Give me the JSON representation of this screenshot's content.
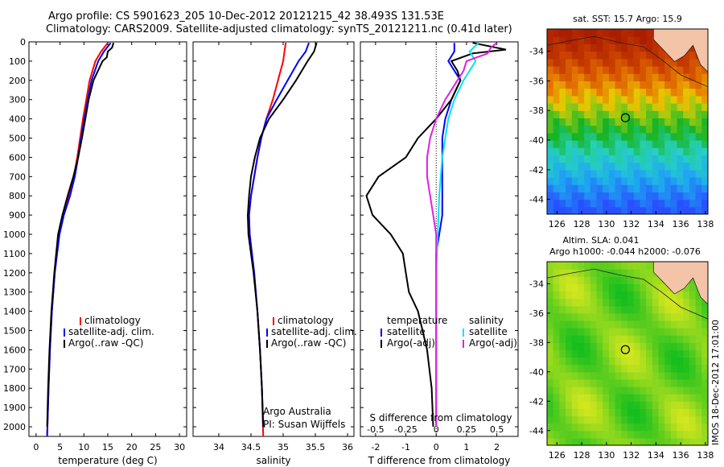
{
  "title": {
    "line1": "Argo profile: CS 5901623_205 10-Dec-2012 20121215_42 38.493S 131.53E",
    "line2": "Climatology: CARS2009. Satellite-adjusted climatology: synTS_20121211.nc (0.41d later)"
  },
  "colors": {
    "climatology": "#ff0000",
    "satellite": "#0000ff",
    "argo": "#000000",
    "sal_satellite": "#00e5ee",
    "sal_argo": "#e020e0"
  },
  "chart_data": [
    {
      "type": "line",
      "xlabel": "temperature (deg C)",
      "xticks": [
        0,
        5,
        10,
        15,
        20,
        25,
        30
      ],
      "xlim": [
        -1.5,
        31.5
      ],
      "ylim": [
        0,
        2050
      ],
      "yticks": [
        0,
        100,
        200,
        300,
        400,
        500,
        600,
        700,
        800,
        900,
        1000,
        1100,
        1200,
        1300,
        1400,
        1500,
        1600,
        1700,
        1800,
        1900,
        2000
      ],
      "legend": [
        "climatology",
        "satellite-adj. clim.",
        "Argo(..raw -QC)"
      ],
      "series": [
        {
          "name": "climatology",
          "y": [
            5,
            50,
            100,
            200,
            300,
            400,
            500,
            600,
            700,
            800,
            900,
            1000,
            1200,
            1400,
            1600,
            1800,
            2050
          ],
          "x": [
            15.0,
            13.6,
            12.4,
            11.2,
            10.5,
            9.8,
            9.2,
            8.6,
            7.9,
            6.9,
            5.6,
            4.8,
            3.9,
            3.3,
            2.9,
            2.6,
            2.3
          ]
        },
        {
          "name": "satellite-adj. clim.",
          "y": [
            5,
            50,
            100,
            200,
            300,
            400,
            500,
            600,
            700,
            800,
            900,
            1000,
            1200,
            1400,
            1600,
            1800,
            2050
          ],
          "x": [
            15.6,
            14.2,
            13.0,
            11.6,
            10.8,
            10.1,
            9.4,
            8.8,
            8.1,
            7.1,
            5.8,
            4.9,
            3.9,
            3.3,
            2.9,
            2.6,
            2.3
          ]
        },
        {
          "name": "Argo(..raw -QC)",
          "y": [
            5,
            30,
            50,
            80,
            100,
            200,
            300,
            400,
            500,
            600,
            700,
            800,
            900,
            1000,
            1200,
            1400,
            1600,
            1800,
            2000
          ],
          "x": [
            16.2,
            15.9,
            15.0,
            14.8,
            13.9,
            12.0,
            11.0,
            10.3,
            9.6,
            8.8,
            7.8,
            6.6,
            5.5,
            4.6,
            3.8,
            3.2,
            2.8,
            2.5,
            2.3
          ]
        }
      ]
    },
    {
      "type": "line",
      "xlabel": "salinity",
      "xticks": [
        34,
        34.5,
        35,
        35.5,
        36
      ],
      "xlim": [
        33.6,
        36.1
      ],
      "ylim": [
        0,
        2050
      ],
      "legend": [
        "climatology",
        "satellite-adj. clim.",
        "Argo(..raw -QC)"
      ],
      "annotation": [
        "Argo Australia",
        "PI: Susan Wijffels"
      ],
      "series": [
        {
          "name": "climatology",
          "y": [
            5,
            50,
            100,
            200,
            300,
            400,
            500,
            600,
            700,
            800,
            900,
            1000,
            1200,
            1400,
            1600,
            1800,
            2050
          ],
          "x": [
            35.04,
            35.02,
            35.0,
            34.92,
            34.84,
            34.74,
            34.66,
            34.6,
            34.55,
            34.5,
            34.47,
            34.48,
            34.55,
            34.6,
            34.64,
            34.67,
            34.69
          ]
        },
        {
          "name": "satellite-adj. clim.",
          "y": [
            5,
            50,
            100,
            200,
            300,
            400,
            500,
            600,
            700,
            800,
            900,
            1000,
            1200,
            1400,
            1600,
            1800,
            2000
          ],
          "x": [
            35.4,
            35.35,
            35.24,
            35.07,
            34.9,
            34.74,
            34.66,
            34.6,
            34.55,
            34.5,
            34.47,
            34.48,
            34.55,
            34.6,
            34.64,
            34.67,
            34.69
          ]
        },
        {
          "name": "Argo(..raw -QC)",
          "y": [
            5,
            50,
            100,
            200,
            300,
            400,
            500,
            600,
            700,
            800,
            900,
            1000,
            1200,
            1400,
            1600,
            1800,
            2000
          ],
          "x": [
            35.52,
            35.48,
            35.38,
            35.2,
            35.0,
            34.78,
            34.64,
            34.56,
            34.5,
            34.47,
            34.45,
            34.46,
            34.54,
            34.6,
            34.64,
            34.67,
            34.69
          ]
        }
      ]
    },
    {
      "type": "line",
      "xlabel": "T difference from climatology",
      "xticks": [
        -2,
        -1,
        0,
        1,
        2
      ],
      "xlim": [
        -2.5,
        2.7
      ],
      "top_xlabel": "S difference from climatology",
      "top_xticks": [
        "-0.5",
        "-0.25",
        "0",
        "0.25",
        "0.5"
      ],
      "ylim": [
        0,
        2050
      ],
      "legend_temperature": {
        "title": "temperature",
        "items": [
          "satellite",
          "Argo(-adj)"
        ]
      },
      "legend_salinity": {
        "title": "salinity",
        "items": [
          "satellite",
          "Argo(-adj)"
        ]
      },
      "series": [
        {
          "name": "temperature satellite",
          "y": [
            5,
            50,
            100,
            200,
            300,
            400,
            500,
            600,
            700,
            800,
            900,
            1000,
            1100,
            1200,
            1400,
            1600,
            1800,
            2000
          ],
          "x": [
            0.6,
            0.6,
            0.4,
            0.8,
            0.5,
            0.3,
            0.2,
            0.2,
            0.2,
            0.2,
            0.2,
            0.1,
            0.0,
            0.0,
            0.0,
            0.0,
            0.0,
            0.0
          ]
        },
        {
          "name": "temperature Argo(-adj)",
          "y": [
            5,
            40,
            60,
            100,
            150,
            200,
            300,
            400,
            500,
            600,
            700,
            800,
            900,
            1000,
            1100,
            1200,
            1300,
            1400,
            1600,
            1800,
            2000
          ],
          "x": [
            1.2,
            2.3,
            1.2,
            0.5,
            0.7,
            0.8,
            0.5,
            0.0,
            -0.6,
            -1.0,
            -1.9,
            -2.3,
            -2.1,
            -1.5,
            -1.1,
            -1.0,
            -0.9,
            -0.6,
            -0.3,
            -0.15,
            -0.1
          ]
        },
        {
          "name": "salinity satellite",
          "y": [
            5,
            50,
            100,
            200,
            300,
            400,
            500,
            600,
            800,
            1000,
            1200,
            1400,
            1600,
            1800,
            2000
          ],
          "x": [
            1.4,
            1.1,
            1.3,
            0.9,
            0.6,
            0.4,
            0.3,
            0.2,
            0.1,
            0.05,
            0.0,
            0.0,
            0.0,
            0.0,
            0.0
          ]
        },
        {
          "name": "salinity Argo(-adj)",
          "y": [
            5,
            30,
            60,
            100,
            150,
            200,
            300,
            400,
            500,
            600,
            700,
            800,
            900,
            1000,
            1100,
            1200,
            1400,
            1600,
            1800,
            2000
          ],
          "x": [
            2.0,
            1.8,
            1.7,
            1.0,
            0.9,
            0.7,
            0.3,
            0.0,
            -0.2,
            -0.3,
            -0.3,
            -0.2,
            -0.1,
            0.0,
            0.0,
            0.0,
            0.0,
            0.0,
            0.0,
            0.0
          ]
        }
      ]
    },
    {
      "type": "heatmap",
      "title": "sat. SST: 15.7 Argo: 15.9",
      "xticks": [
        126,
        128,
        130,
        132,
        134,
        136,
        138
      ],
      "yticks": [
        -34,
        -36,
        -38,
        -40,
        -42,
        -44
      ],
      "xlim": [
        125.2,
        138.2
      ],
      "ylim": [
        -45.0,
        -32.5
      ],
      "marker": {
        "lon": 131.53,
        "lat": -38.49
      }
    },
    {
      "type": "heatmap",
      "title": [
        "Altim. SLA: 0.041",
        "Argo h1000: -0.044 h2000: -0.076"
      ],
      "xticks": [
        126,
        128,
        130,
        132,
        134,
        136,
        138
      ],
      "yticks": [
        -34,
        -36,
        -38,
        -40,
        -42,
        -44
      ],
      "xlim": [
        125.2,
        138.2
      ],
      "ylim": [
        -45.0,
        -32.5
      ],
      "marker": {
        "lon": 131.53,
        "lat": -38.49
      },
      "side_label": "IMOS 18-Dec-2012 17:01:00"
    }
  ]
}
